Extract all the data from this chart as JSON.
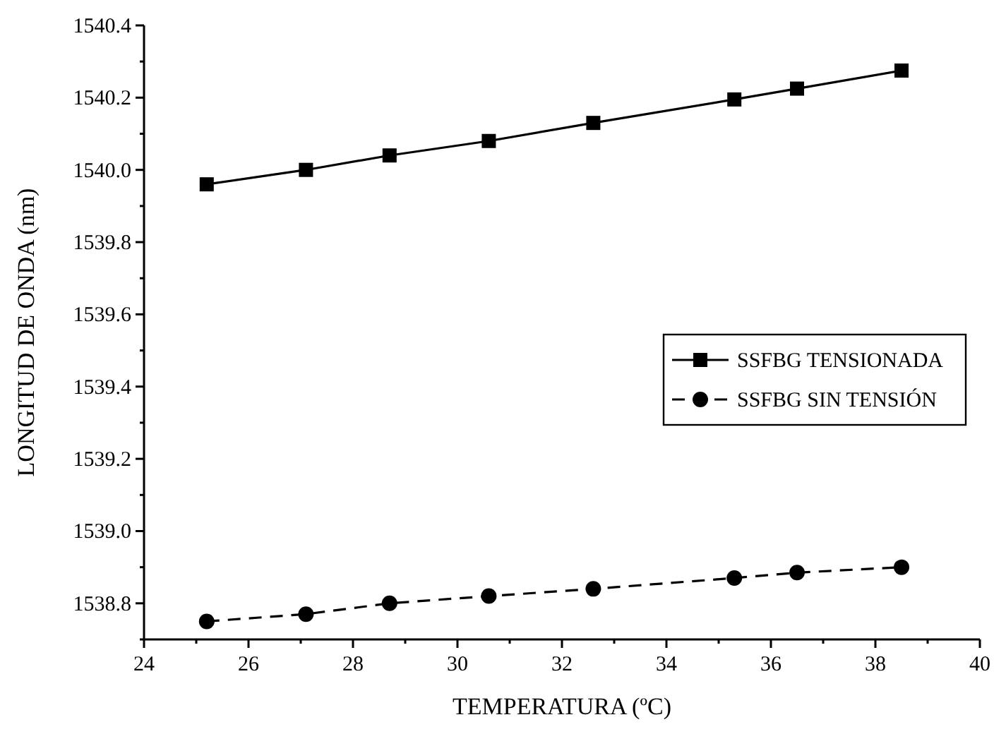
{
  "chart_data": {
    "type": "line",
    "xlabel": "TEMPERATURA (ºC)",
    "ylabel": "LONGITUD DE ONDA (nm)",
    "x": [
      25.2,
      27.1,
      28.7,
      30.6,
      32.6,
      35.3,
      36.5,
      38.5
    ],
    "series": [
      {
        "name": "SSFBG TENSIONADA",
        "color": "#000000",
        "marker": "square",
        "line_style": "solid",
        "values": [
          1539.96,
          1540.0,
          1540.04,
          1540.08,
          1540.13,
          1540.195,
          1540.225,
          1540.275
        ]
      },
      {
        "name": "SSFBG SIN TENSIÓN",
        "color": "#000000",
        "marker": "circle",
        "line_style": "dashed",
        "values": [
          1538.75,
          1538.77,
          1538.8,
          1538.82,
          1538.84,
          1538.87,
          1538.885,
          1538.9
        ]
      }
    ],
    "xlim": [
      24,
      40
    ],
    "ylim": [
      1538.7,
      1540.4
    ],
    "xticks": [
      24,
      {
        "value": 25,
        "label": null
      },
      26,
      {
        "value": 27,
        "label": null
      },
      28,
      {
        "value": 29,
        "label": null
      },
      30,
      {
        "value": 31,
        "label": null
      },
      32,
      {
        "value": 33,
        "label": null
      },
      34,
      {
        "value": 35,
        "label": null
      },
      36,
      {
        "value": 37,
        "label": null
      },
      38,
      {
        "value": 39,
        "label": null
      },
      40
    ],
    "yticks": [
      {
        "value": 1538.7,
        "label": null
      },
      {
        "value": 1538.8,
        "label": "1538.8"
      },
      {
        "value": 1538.9,
        "label": null
      },
      {
        "value": 1539.0,
        "label": "1539.0"
      },
      {
        "value": 1539.1,
        "label": null
      },
      {
        "value": 1539.2,
        "label": "1539.2"
      },
      {
        "value": 1539.3,
        "label": null
      },
      {
        "value": 1539.4,
        "label": "1539.4"
      },
      {
        "value": 1539.5,
        "label": null
      },
      {
        "value": 1539.6,
        "label": "1539.6"
      },
      {
        "value": 1539.7,
        "label": null
      },
      {
        "value": 1539.8,
        "label": "1539.8"
      },
      {
        "value": 1539.9,
        "label": null
      },
      {
        "value": 1540.0,
        "label": "1540.0"
      },
      {
        "value": 1540.1,
        "label": null
      },
      {
        "value": 1540.2,
        "label": "1540.2"
      },
      {
        "value": 1540.3,
        "label": null
      },
      {
        "value": 1540.4,
        "label": "1540.4"
      }
    ],
    "grid": false,
    "legend": "right"
  }
}
